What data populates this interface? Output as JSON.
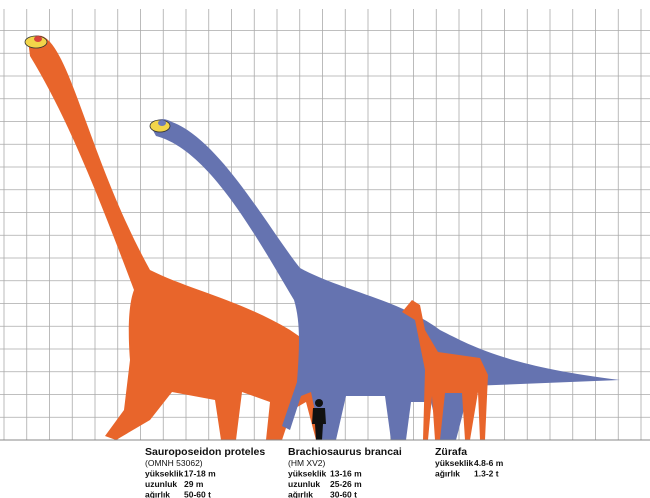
{
  "animals": [
    {
      "name": "Sauroposeidon proteles",
      "specimen": "(OMNH 53062)",
      "stats": [
        {
          "label": "yükseklik",
          "value": "17-18 m"
        },
        {
          "label": "uzunluk",
          "value": "29 m"
        },
        {
          "label": "ağırlık",
          "value": "50-60 t"
        }
      ]
    },
    {
      "name": "Brachiosaurus brancai",
      "specimen": "(HM XV2)",
      "stats": [
        {
          "label": "yükseklik",
          "value": "13-16 m"
        },
        {
          "label": "uzunluk",
          "value": "25-26 m"
        },
        {
          "label": "ağırlık",
          "value": "30-60 t"
        }
      ]
    },
    {
      "name": "Zürafa",
      "stats": [
        {
          "label": "yükseklik",
          "value": "4.8-6 m"
        },
        {
          "label": "ağırlık",
          "value": "1.3-2 t"
        }
      ]
    }
  ]
}
